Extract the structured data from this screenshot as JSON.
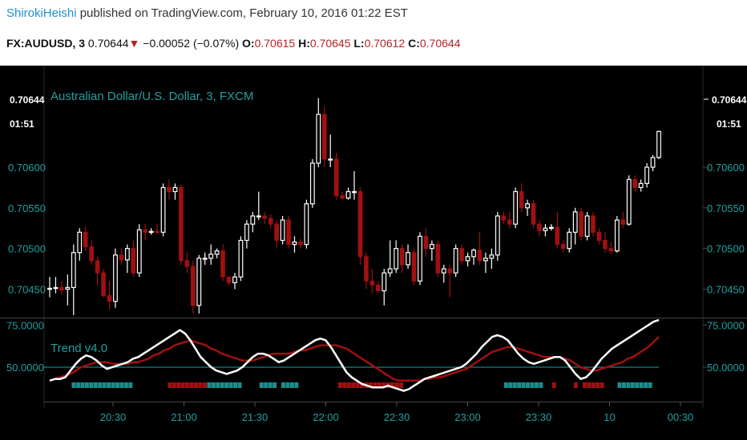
{
  "header": {
    "author": "ShirokiHeishi",
    "published_text": "published on TradingView.com, February 10, 2016 01:22 EST",
    "symbol": "FX:AUDUSD, 3",
    "last": "0.70644",
    "change": "−0.00052 (−0.07%)",
    "ohlc": [
      {
        "label": "O:",
        "value": "0.70615"
      },
      {
        "label": "H:",
        "value": "0.70645"
      },
      {
        "label": "L:",
        "value": "0.70612"
      },
      {
        "label": "C:",
        "value": "0.70644"
      }
    ]
  },
  "colors": {
    "background": "#000000",
    "up_candle": "#ffffff",
    "down_candle": "#a01010",
    "axis_text": "#20a0a0",
    "last_price_label": "#ffffff",
    "trend_line": "#ffffff",
    "signal_line": "#a01010",
    "hline": "#20a0a0",
    "dot_teal": "#1a8e8e",
    "dot_red": "#a01010"
  },
  "chart_data": [
    {
      "type": "candlestick",
      "title": "Australian Dollar/U.S. Dollar, 3, FXCM",
      "last_price_label": "0.70644",
      "countdown_label": "01:51",
      "y_ticks": [
        "0.70600",
        "0.70550",
        "0.70500",
        "0.70450"
      ],
      "y_tick_values": [
        0.706,
        0.7055,
        0.705,
        0.7045
      ],
      "ylim": [
        0.70415,
        0.70725
      ],
      "x_ticks": [
        "20:30",
        "21:00",
        "21:30",
        "22:00",
        "22:30",
        "23:00",
        "23:30",
        "10",
        "00:30"
      ],
      "candles": [
        {
          "o": 0.7045,
          "h": 0.70465,
          "l": 0.7044,
          "c": 0.70451
        },
        {
          "o": 0.70451,
          "h": 0.70465,
          "l": 0.70445,
          "c": 0.70452
        },
        {
          "o": 0.70452,
          "h": 0.7046,
          "l": 0.70443,
          "c": 0.70449
        },
        {
          "o": 0.7045,
          "h": 0.70468,
          "l": 0.7043,
          "c": 0.70452
        },
        {
          "o": 0.70452,
          "h": 0.70505,
          "l": 0.70418,
          "c": 0.70495
        },
        {
          "o": 0.70495,
          "h": 0.70525,
          "l": 0.70485,
          "c": 0.7052
        },
        {
          "o": 0.7052,
          "h": 0.70527,
          "l": 0.70497,
          "c": 0.70502
        },
        {
          "o": 0.70502,
          "h": 0.7051,
          "l": 0.7048,
          "c": 0.70485
        },
        {
          "o": 0.70485,
          "h": 0.7049,
          "l": 0.70455,
          "c": 0.7047
        },
        {
          "o": 0.7047,
          "h": 0.70475,
          "l": 0.7044,
          "c": 0.70442
        },
        {
          "o": 0.70442,
          "h": 0.7046,
          "l": 0.70425,
          "c": 0.70435
        },
        {
          "o": 0.70435,
          "h": 0.705,
          "l": 0.70427,
          "c": 0.70492
        },
        {
          "o": 0.70492,
          "h": 0.705,
          "l": 0.7048,
          "c": 0.70486
        },
        {
          "o": 0.70486,
          "h": 0.70505,
          "l": 0.7047,
          "c": 0.705
        },
        {
          "o": 0.705,
          "h": 0.7051,
          "l": 0.70465,
          "c": 0.7047
        },
        {
          "o": 0.7047,
          "h": 0.7053,
          "l": 0.70465,
          "c": 0.70523
        },
        {
          "o": 0.70523,
          "h": 0.7053,
          "l": 0.7051,
          "c": 0.7052
        },
        {
          "o": 0.7052,
          "h": 0.70525,
          "l": 0.70517,
          "c": 0.70521
        },
        {
          "o": 0.70521,
          "h": 0.7053,
          "l": 0.70518,
          "c": 0.7052
        },
        {
          "o": 0.7052,
          "h": 0.7058,
          "l": 0.70515,
          "c": 0.70575
        },
        {
          "o": 0.70575,
          "h": 0.70585,
          "l": 0.7056,
          "c": 0.7057
        },
        {
          "o": 0.7057,
          "h": 0.7058,
          "l": 0.7056,
          "c": 0.70575
        },
        {
          "o": 0.70575,
          "h": 0.70578,
          "l": 0.7048,
          "c": 0.70485
        },
        {
          "o": 0.70485,
          "h": 0.70495,
          "l": 0.7047,
          "c": 0.70478
        },
        {
          "o": 0.70478,
          "h": 0.70485,
          "l": 0.7042,
          "c": 0.7043
        },
        {
          "o": 0.7043,
          "h": 0.70492,
          "l": 0.7042,
          "c": 0.70488
        },
        {
          "o": 0.70488,
          "h": 0.70495,
          "l": 0.7048,
          "c": 0.70488
        },
        {
          "o": 0.70488,
          "h": 0.70505,
          "l": 0.7048,
          "c": 0.70493
        },
        {
          "o": 0.70493,
          "h": 0.705,
          "l": 0.70488,
          "c": 0.70497
        },
        {
          "o": 0.70497,
          "h": 0.70505,
          "l": 0.7046,
          "c": 0.70465
        },
        {
          "o": 0.70465,
          "h": 0.70465,
          "l": 0.70455,
          "c": 0.70458
        },
        {
          "o": 0.70458,
          "h": 0.7047,
          "l": 0.7045,
          "c": 0.70465
        },
        {
          "o": 0.70465,
          "h": 0.70515,
          "l": 0.7046,
          "c": 0.7051
        },
        {
          "o": 0.7051,
          "h": 0.70535,
          "l": 0.705,
          "c": 0.7053
        },
        {
          "o": 0.7053,
          "h": 0.70545,
          "l": 0.7052,
          "c": 0.7054
        },
        {
          "o": 0.7054,
          "h": 0.7057,
          "l": 0.70535,
          "c": 0.7054
        },
        {
          "o": 0.7054,
          "h": 0.70545,
          "l": 0.7053,
          "c": 0.70537
        },
        {
          "o": 0.70537,
          "h": 0.70542,
          "l": 0.70525,
          "c": 0.7053
        },
        {
          "o": 0.7053,
          "h": 0.70535,
          "l": 0.705,
          "c": 0.7051
        },
        {
          "o": 0.7051,
          "h": 0.7054,
          "l": 0.70505,
          "c": 0.70535
        },
        {
          "o": 0.70535,
          "h": 0.7054,
          "l": 0.705,
          "c": 0.70505
        },
        {
          "o": 0.70505,
          "h": 0.70515,
          "l": 0.70495,
          "c": 0.70508
        },
        {
          "o": 0.70508,
          "h": 0.70512,
          "l": 0.705,
          "c": 0.70505
        },
        {
          "o": 0.70505,
          "h": 0.7056,
          "l": 0.705,
          "c": 0.70555
        },
        {
          "o": 0.70555,
          "h": 0.7061,
          "l": 0.7055,
          "c": 0.70605
        },
        {
          "o": 0.70605,
          "h": 0.70685,
          "l": 0.706,
          "c": 0.70665
        },
        {
          "o": 0.70665,
          "h": 0.70675,
          "l": 0.706,
          "c": 0.7061
        },
        {
          "o": 0.7061,
          "h": 0.7064,
          "l": 0.706,
          "c": 0.7061
        },
        {
          "o": 0.7061,
          "h": 0.70618,
          "l": 0.7056,
          "c": 0.70565
        },
        {
          "o": 0.70565,
          "h": 0.7057,
          "l": 0.7056,
          "c": 0.70562
        },
        {
          "o": 0.70562,
          "h": 0.70575,
          "l": 0.7056,
          "c": 0.7057
        },
        {
          "o": 0.7057,
          "h": 0.70595,
          "l": 0.7056,
          "c": 0.7057
        },
        {
          "o": 0.7057,
          "h": 0.70575,
          "l": 0.7048,
          "c": 0.7049
        },
        {
          "o": 0.7049,
          "h": 0.70495,
          "l": 0.7045,
          "c": 0.7046
        },
        {
          "o": 0.7046,
          "h": 0.70475,
          "l": 0.70445,
          "c": 0.70455
        },
        {
          "o": 0.70455,
          "h": 0.7046,
          "l": 0.70445,
          "c": 0.70448
        },
        {
          "o": 0.70448,
          "h": 0.70475,
          "l": 0.7043,
          "c": 0.7047
        },
        {
          "o": 0.7047,
          "h": 0.7051,
          "l": 0.70465,
          "c": 0.70475
        },
        {
          "o": 0.70475,
          "h": 0.7051,
          "l": 0.7047,
          "c": 0.705
        },
        {
          "o": 0.705,
          "h": 0.70505,
          "l": 0.7047,
          "c": 0.7048
        },
        {
          "o": 0.7048,
          "h": 0.70505,
          "l": 0.70475,
          "c": 0.70495
        },
        {
          "o": 0.70495,
          "h": 0.705,
          "l": 0.70455,
          "c": 0.7046
        },
        {
          "o": 0.7046,
          "h": 0.7052,
          "l": 0.70455,
          "c": 0.70515
        },
        {
          "o": 0.70515,
          "h": 0.70525,
          "l": 0.7049,
          "c": 0.705
        },
        {
          "o": 0.705,
          "h": 0.7051,
          "l": 0.70485,
          "c": 0.70505
        },
        {
          "o": 0.70505,
          "h": 0.7051,
          "l": 0.70465,
          "c": 0.7047
        },
        {
          "o": 0.7047,
          "h": 0.7048,
          "l": 0.70458,
          "c": 0.70475
        },
        {
          "o": 0.70475,
          "h": 0.7048,
          "l": 0.7044,
          "c": 0.7047
        },
        {
          "o": 0.7047,
          "h": 0.70505,
          "l": 0.70465,
          "c": 0.705
        },
        {
          "o": 0.705,
          "h": 0.70505,
          "l": 0.7048,
          "c": 0.70485
        },
        {
          "o": 0.70485,
          "h": 0.70495,
          "l": 0.70478,
          "c": 0.7049
        },
        {
          "o": 0.7049,
          "h": 0.705,
          "l": 0.7048,
          "c": 0.70498
        },
        {
          "o": 0.70498,
          "h": 0.7052,
          "l": 0.7048,
          "c": 0.70485
        },
        {
          "o": 0.70485,
          "h": 0.70495,
          "l": 0.7047,
          "c": 0.70488
        },
        {
          "o": 0.70488,
          "h": 0.705,
          "l": 0.70475,
          "c": 0.70492
        },
        {
          "o": 0.70492,
          "h": 0.70545,
          "l": 0.70485,
          "c": 0.7054
        },
        {
          "o": 0.7054,
          "h": 0.70545,
          "l": 0.7053,
          "c": 0.70535
        },
        {
          "o": 0.70535,
          "h": 0.70545,
          "l": 0.70525,
          "c": 0.7053
        },
        {
          "o": 0.7053,
          "h": 0.70575,
          "l": 0.70525,
          "c": 0.7057
        },
        {
          "o": 0.7057,
          "h": 0.7058,
          "l": 0.70545,
          "c": 0.7055
        },
        {
          "o": 0.7055,
          "h": 0.7056,
          "l": 0.7054,
          "c": 0.70555
        },
        {
          "o": 0.70555,
          "h": 0.7056,
          "l": 0.70525,
          "c": 0.7053
        },
        {
          "o": 0.7053,
          "h": 0.70535,
          "l": 0.70515,
          "c": 0.70522
        },
        {
          "o": 0.70522,
          "h": 0.7053,
          "l": 0.70515,
          "c": 0.70525
        },
        {
          "o": 0.70525,
          "h": 0.7053,
          "l": 0.70522,
          "c": 0.70526
        },
        {
          "o": 0.70526,
          "h": 0.70545,
          "l": 0.705,
          "c": 0.70505
        },
        {
          "o": 0.70505,
          "h": 0.7051,
          "l": 0.70495,
          "c": 0.705
        },
        {
          "o": 0.705,
          "h": 0.70525,
          "l": 0.70495,
          "c": 0.7052
        },
        {
          "o": 0.7052,
          "h": 0.7055,
          "l": 0.70505,
          "c": 0.70545
        },
        {
          "o": 0.70545,
          "h": 0.7055,
          "l": 0.7051,
          "c": 0.70515
        },
        {
          "o": 0.70515,
          "h": 0.70545,
          "l": 0.7051,
          "c": 0.7054
        },
        {
          "o": 0.7054,
          "h": 0.70545,
          "l": 0.70515,
          "c": 0.7052
        },
        {
          "o": 0.7052,
          "h": 0.70525,
          "l": 0.70505,
          "c": 0.7051
        },
        {
          "o": 0.7051,
          "h": 0.7052,
          "l": 0.70495,
          "c": 0.705
        },
        {
          "o": 0.705,
          "h": 0.70508,
          "l": 0.70493,
          "c": 0.70497
        },
        {
          "o": 0.70497,
          "h": 0.7054,
          "l": 0.70495,
          "c": 0.70535
        },
        {
          "o": 0.70535,
          "h": 0.70545,
          "l": 0.70525,
          "c": 0.7053
        },
        {
          "o": 0.7053,
          "h": 0.7059,
          "l": 0.70528,
          "c": 0.70585
        },
        {
          "o": 0.70585,
          "h": 0.7059,
          "l": 0.7057,
          "c": 0.70575
        },
        {
          "o": 0.70575,
          "h": 0.70585,
          "l": 0.7057,
          "c": 0.7058
        },
        {
          "o": 0.7058,
          "h": 0.70605,
          "l": 0.70575,
          "c": 0.706
        },
        {
          "o": 0.706,
          "h": 0.70615,
          "l": 0.70595,
          "c": 0.70612
        },
        {
          "o": 0.70612,
          "h": 0.70645,
          "l": 0.7061,
          "c": 0.70644
        }
      ]
    },
    {
      "type": "line",
      "title": "Trend v4.0",
      "y_ticks": [
        "75.0000",
        "50.0000"
      ],
      "y_tick_values": [
        75,
        50
      ],
      "ylim": [
        31,
        78
      ],
      "hline": 50,
      "series": [
        {
          "color_key": "trend_line",
          "values": [
            42,
            43,
            43,
            44,
            48,
            52,
            55,
            57,
            56,
            54,
            51,
            49,
            50,
            51,
            52,
            53,
            55,
            56,
            58,
            60,
            62,
            64,
            66,
            68,
            70,
            72,
            70,
            66,
            61,
            56,
            53,
            50,
            48,
            47,
            46,
            47,
            48,
            50,
            53,
            56,
            58,
            58,
            57,
            55,
            53,
            54,
            56,
            58,
            60,
            62,
            64,
            66,
            67,
            66,
            62,
            57,
            52,
            47,
            44,
            42,
            40,
            39,
            38,
            38,
            38,
            39,
            38,
            37,
            36,
            37,
            39,
            41,
            43,
            44,
            45,
            46,
            47,
            48,
            49,
            50,
            52,
            55,
            58,
            62,
            65,
            68,
            69,
            68,
            66,
            62,
            58,
            55,
            53,
            52,
            53,
            54,
            55,
            56,
            56,
            54,
            50,
            46,
            43,
            44,
            47,
            51,
            55,
            58,
            61,
            63,
            65,
            67,
            69,
            71,
            73,
            75,
            77,
            78
          ]
        },
        {
          "color_key": "signal_line",
          "values": [
            42,
            43,
            44,
            45,
            46,
            48,
            50,
            51,
            52,
            53,
            53,
            53,
            52,
            52,
            52,
            52,
            53,
            53,
            54,
            55,
            57,
            58,
            60,
            61,
            63,
            64,
            65,
            66,
            65,
            64,
            63,
            61,
            60,
            58,
            57,
            56,
            55,
            54,
            54,
            54,
            55,
            56,
            57,
            58,
            58,
            58,
            58,
            59,
            60,
            60,
            61,
            62,
            63,
            63,
            63,
            63,
            62,
            61,
            59,
            57,
            55,
            53,
            51,
            49,
            47,
            45,
            43,
            42,
            42,
            42,
            42,
            42,
            43,
            43,
            44,
            44,
            45,
            46,
            47,
            48,
            49,
            51,
            53,
            55,
            57,
            59,
            60,
            61,
            62,
            62,
            61,
            60,
            59,
            58,
            57,
            56,
            56,
            56,
            56,
            55,
            54,
            52,
            50,
            49,
            48,
            48,
            49,
            50,
            51,
            52,
            53,
            55,
            56,
            58,
            60,
            62,
            65,
            68
          ]
        }
      ],
      "signal_dots": "tttttttttttttt........rrrrrrrrrtttttttt....tttt.tttt.........rrrrrrrrrrrrrrr.......................ttttttttt..r....r.rrrrr...tttttttt.."
    }
  ]
}
